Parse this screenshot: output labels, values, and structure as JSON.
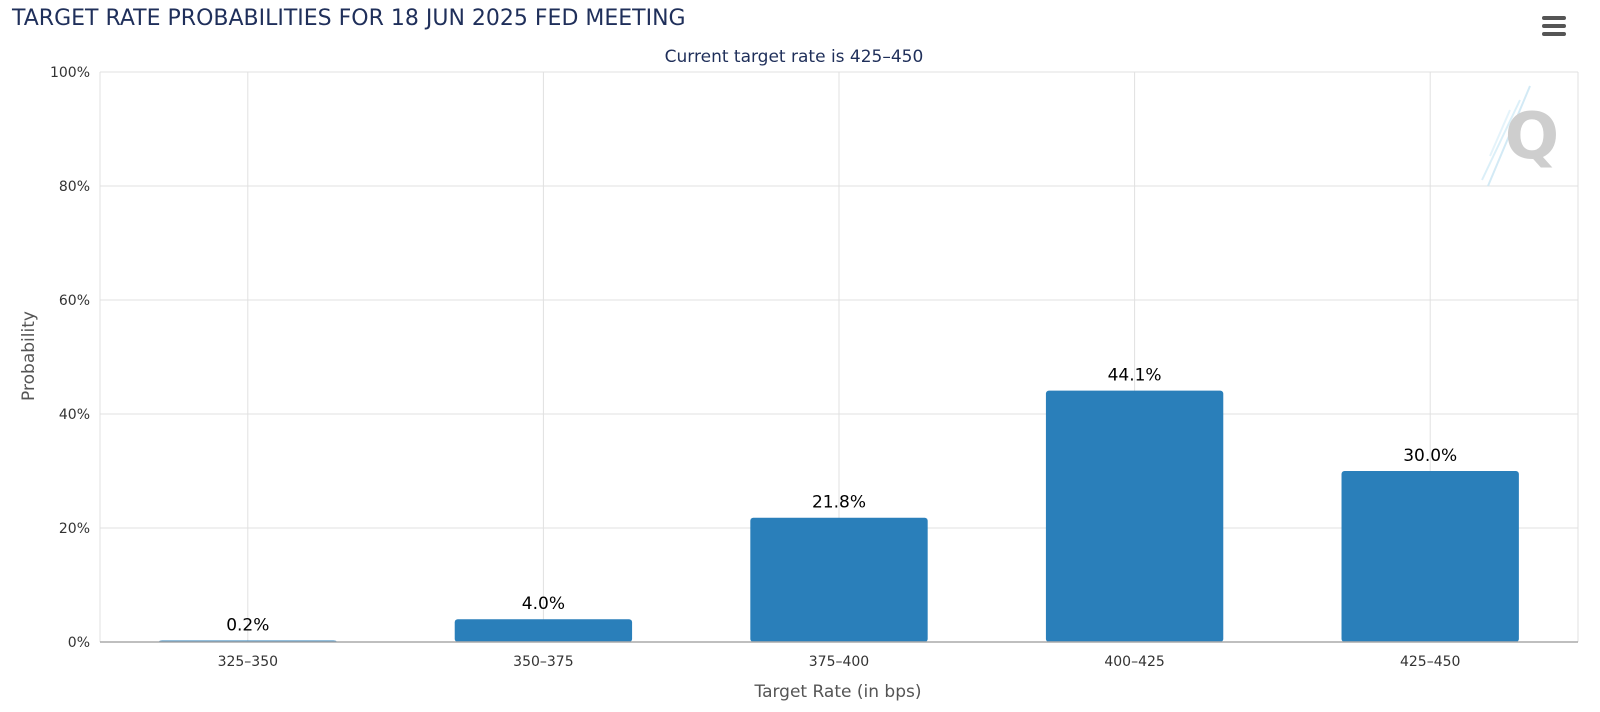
{
  "header": {
    "title": "TARGET RATE PROBABILITIES FOR 18 JUN 2025 FED MEETING",
    "menu_icon": "hamburger-menu-icon"
  },
  "watermark": {
    "icon": "q-logo-icon",
    "text": "Q"
  },
  "colors": {
    "bar": "#2a7fba",
    "title": "#1f2f5a",
    "grid": "#e0e0e0",
    "axis": "#aaaaaa"
  },
  "chart_data": {
    "type": "bar",
    "title": "TARGET RATE PROBABILITIES FOR 18 JUN 2025 FED MEETING",
    "subtitle": "Current target rate is 425–450",
    "xlabel": "Target Rate (in bps)",
    "ylabel": "Probability",
    "categories": [
      "325–350",
      "350–375",
      "375–400",
      "400–425",
      "425–450"
    ],
    "values": [
      0.2,
      4.0,
      21.8,
      44.1,
      30.0
    ],
    "data_labels": [
      "0.2%",
      "4.0%",
      "21.8%",
      "44.1%",
      "30.0%"
    ],
    "ylim": [
      0,
      100
    ],
    "yticks": [
      0,
      20,
      40,
      60,
      80,
      100
    ],
    "ytick_labels": [
      "0%",
      "20%",
      "40%",
      "60%",
      "80%",
      "100%"
    ],
    "grid": true,
    "legend": false
  }
}
